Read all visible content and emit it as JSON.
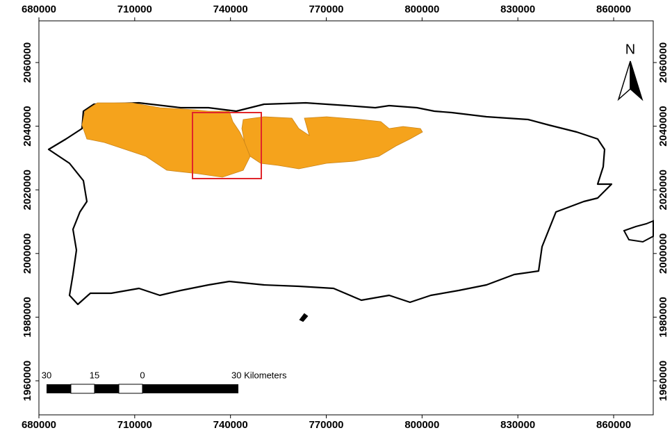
{
  "map": {
    "xlim": [
      680000,
      872400
    ],
    "ylim": [
      1949300,
      2073100
    ],
    "xticks": [
      680000,
      710000,
      740000,
      770000,
      800000,
      830000,
      860000
    ],
    "yticks": [
      1960000,
      1980000,
      2000000,
      2020000,
      2040000,
      2060000
    ],
    "north_label": "N",
    "scale_bar": {
      "labels": [
        "30",
        "15",
        "0",
        "30 Kilometers"
      ]
    }
  }
}
